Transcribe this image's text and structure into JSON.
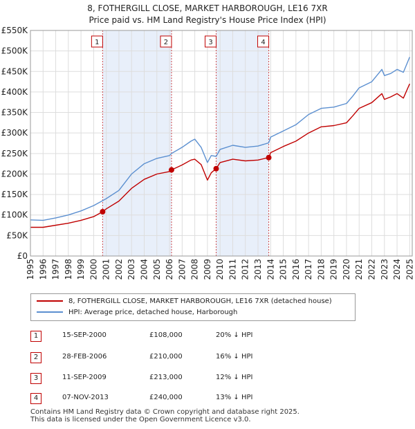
{
  "title_line1": "8, FOTHERGILL CLOSE, MARKET HARBOROUGH, LE16 7XR",
  "title_line2": "Price paid vs. HM Land Registry's House Price Index (HPI)",
  "legend": {
    "red_label": "8, FOTHERGILL CLOSE, MARKET HARBOROUGH, LE16 7XR (detached house)",
    "blue_label": "HPI: Average price, detached house, Harborough"
  },
  "sales": [
    {
      "num": "1",
      "date": "15-SEP-2000",
      "price": "£108,000",
      "hpi": "20% ↓ HPI"
    },
    {
      "num": "2",
      "date": "28-FEB-2006",
      "price": "£210,000",
      "hpi": "16% ↓ HPI"
    },
    {
      "num": "3",
      "date": "11-SEP-2009",
      "price": "£213,000",
      "hpi": "12% ↓ HPI"
    },
    {
      "num": "4",
      "date": "07-NOV-2013",
      "price": "£240,000",
      "hpi": "13% ↓ HPI"
    }
  ],
  "footer_line1": "Contains HM Land Registry data © Crown copyright and database right 2025.",
  "footer_line2": "This data is licensed under the Open Government Licence v3.0.",
  "colors": {
    "red": "#c00000",
    "blue": "#5b8fd0",
    "shade": "#e8effa",
    "grid": "#dddddd"
  },
  "chart_data": {
    "type": "line",
    "xlim": [
      1995,
      2025.2
    ],
    "ylim": [
      0,
      550000
    ],
    "y_ticks": [
      0,
      50000,
      100000,
      150000,
      200000,
      250000,
      300000,
      350000,
      400000,
      450000,
      500000,
      550000
    ],
    "y_tick_labels": [
      "£0",
      "£50K",
      "£100K",
      "£150K",
      "£200K",
      "£250K",
      "£300K",
      "£350K",
      "£400K",
      "£450K",
      "£500K",
      "£550K"
    ],
    "x_ticks": [
      1995,
      1996,
      1997,
      1998,
      1999,
      2000,
      2001,
      2002,
      2003,
      2004,
      2005,
      2006,
      2007,
      2008,
      2009,
      2010,
      2011,
      2012,
      2013,
      2014,
      2015,
      2016,
      2017,
      2018,
      2019,
      2020,
      2021,
      2022,
      2023,
      2024,
      2025
    ],
    "x_tick_labels": [
      "1995",
      "1996",
      "1997",
      "1998",
      "1999",
      "2000",
      "2001",
      "2002",
      "2003",
      "2004",
      "2005",
      "2006",
      "2007",
      "2008",
      "2009",
      "2010",
      "2011",
      "2012",
      "2013",
      "2014",
      "2015",
      "2016",
      "2017",
      "2018",
      "2019",
      "2020",
      "2021",
      "2022",
      "2023",
      "2024",
      "2025"
    ],
    "shaded_ranges": [
      [
        2000.71,
        2006.16
      ],
      [
        2009.69,
        2013.85
      ]
    ],
    "series": [
      {
        "name": "HPI: Average price, detached house, Harborough",
        "color": "#5b8fd0",
        "x": [
          1995,
          1996,
          1997,
          1998,
          1999,
          2000,
          2000.71,
          2001,
          2002,
          2003,
          2004,
          2005,
          2006,
          2006.16,
          2007,
          2007.7,
          2008,
          2008.5,
          2009,
          2009.3,
          2009.69,
          2010,
          2011,
          2012,
          2013,
          2013.85,
          2014,
          2015,
          2016,
          2017,
          2018,
          2019,
          2020,
          2020.5,
          2021,
          2022,
          2022.8,
          2023,
          2023.5,
          2024,
          2024.5,
          2025
        ],
        "y": [
          88000,
          87000,
          93000,
          100000,
          110000,
          123000,
          135000,
          140000,
          160000,
          200000,
          225000,
          238000,
          245000,
          250000,
          265000,
          280000,
          285000,
          265000,
          228000,
          245000,
          243000,
          260000,
          270000,
          265000,
          268000,
          276000,
          290000,
          305000,
          320000,
          345000,
          360000,
          363000,
          372000,
          390000,
          410000,
          425000,
          455000,
          440000,
          445000,
          455000,
          448000,
          485000
        ]
      },
      {
        "name": "8, FOTHERGILL CLOSE, MARKET HARBOROUGH, LE16 7XR (detached house)",
        "color": "#c00000",
        "x": [
          1995,
          1996,
          1997,
          1998,
          1999,
          2000,
          2000.71,
          2001,
          2002,
          2003,
          2004,
          2005,
          2006,
          2006.16,
          2007,
          2007.7,
          2008,
          2008.5,
          2009,
          2009.3,
          2009.69,
          2010,
          2011,
          2012,
          2013,
          2013.85,
          2014,
          2015,
          2016,
          2017,
          2018,
          2019,
          2020,
          2020.5,
          2021,
          2022,
          2022.8,
          2023,
          2023.5,
          2024,
          2024.5,
          2025
        ],
        "y": [
          70000,
          70000,
          75000,
          80000,
          87000,
          96000,
          108000,
          115000,
          134000,
          165000,
          187000,
          200000,
          206000,
          210000,
          222000,
          234000,
          236000,
          223000,
          185000,
          203000,
          213000,
          228000,
          236000,
          232000,
          234000,
          240000,
          252000,
          267000,
          280000,
          300000,
          315000,
          318000,
          325000,
          342000,
          360000,
          374000,
          396000,
          382000,
          388000,
          396000,
          385000,
          420000
        ]
      }
    ],
    "sale_points": [
      {
        "label": "1",
        "x": 2000.71,
        "y": 108000
      },
      {
        "label": "2",
        "x": 2006.16,
        "y": 210000
      },
      {
        "label": "3",
        "x": 2009.69,
        "y": 213000
      },
      {
        "label": "4",
        "x": 2013.85,
        "y": 240000
      }
    ]
  }
}
